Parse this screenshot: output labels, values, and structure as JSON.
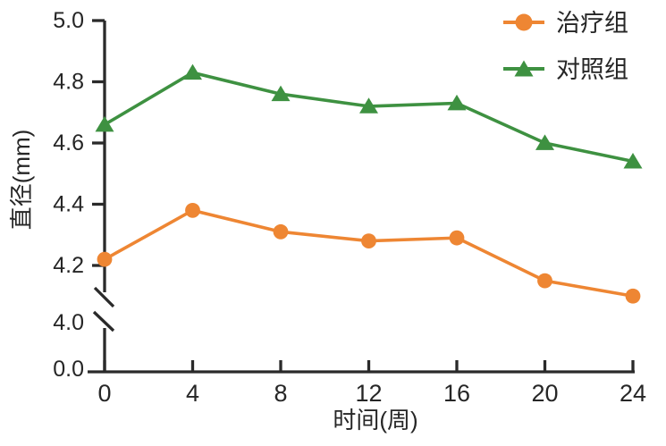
{
  "chart_data": {
    "type": "line",
    "x": [
      0,
      4,
      8,
      12,
      16,
      20,
      24
    ],
    "x_tick_labels": [
      "0",
      "4",
      "8",
      "12",
      "16",
      "20",
      "24"
    ],
    "y_tick_values_upper": [
      5.0,
      4.8,
      4.6,
      4.4,
      4.2
    ],
    "y_tick_labels_upper": [
      "5.0",
      "4.8",
      "4.6",
      "4.4",
      "4.2"
    ],
    "y_break_label": "4.0",
    "y_origin_label": "0.0",
    "series": [
      {
        "name": "治疗组",
        "marker": "circle",
        "color": "#EE8633",
        "values": [
          4.22,
          4.38,
          4.31,
          4.28,
          4.29,
          4.15,
          4.1
        ]
      },
      {
        "name": "对照组",
        "marker": "triangle",
        "color": "#3E9141",
        "values": [
          4.66,
          4.83,
          4.76,
          4.72,
          4.73,
          4.6,
          4.54
        ]
      }
    ],
    "xlabel": "时间(周)",
    "ylabel": "直径(mm)",
    "xlim": [
      0,
      24
    ],
    "ylim_display": [
      4.0,
      5.0
    ],
    "y_axis_break_between": [
      0.0,
      4.0
    ],
    "grid": false,
    "legend_position": "top-right"
  },
  "colors": {
    "treatment": "#EE8633",
    "control": "#3E9141",
    "axis": "#2A2A2A",
    "text": "#262626",
    "background": "#FFFFFF"
  }
}
